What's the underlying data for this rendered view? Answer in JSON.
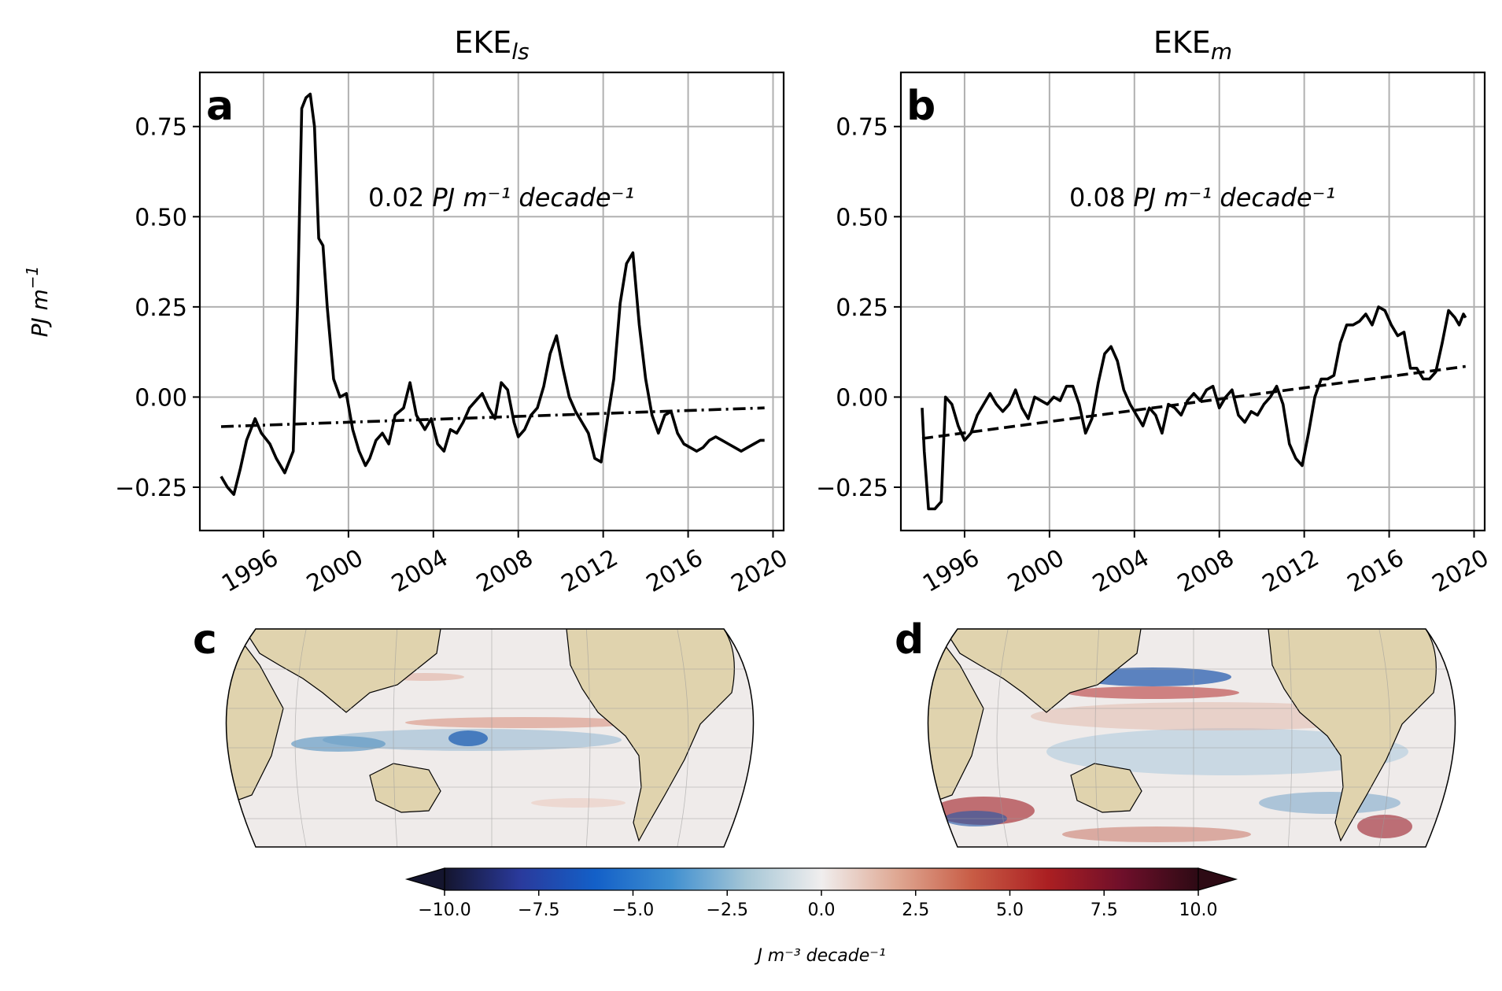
{
  "chart_data": [
    {
      "type": "line",
      "panel": "a",
      "title": "EKE",
      "title_sub": "ls",
      "ylabel": "PJ m",
      "ylabel_sup": "−1",
      "xlim": [
        1993.0,
        2020.5
      ],
      "ylim": [
        -0.37,
        0.9
      ],
      "xticks": [
        1996,
        2000,
        2004,
        2008,
        2012,
        2016,
        2020
      ],
      "xtick_labels": [
        "1996",
        "2000",
        "2004",
        "2008",
        "2012",
        "2016",
        "2020"
      ],
      "yticks": [
        -0.25,
        0.0,
        0.25,
        0.5,
        0.75
      ],
      "ytick_labels": [
        "−0.25",
        "0.00",
        "0.25",
        "0.50",
        "0.75"
      ],
      "grid": true,
      "trend_label": "0.02",
      "trend_units": "PJ m⁻¹ decade⁻¹",
      "series": [
        {
          "style": "solid",
          "color": "#000000",
          "x": [
            1994.0,
            1994.3,
            1994.6,
            1994.9,
            1995.2,
            1995.6,
            1995.9,
            1996.3,
            1996.6,
            1997.0,
            1997.4,
            1997.6,
            1997.8,
            1998.0,
            1998.2,
            1998.4,
            1998.6,
            1998.8,
            1999.0,
            1999.3,
            1999.6,
            1999.9,
            2000.2,
            2000.5,
            2000.8,
            2001.0,
            2001.3,
            2001.6,
            2001.9,
            2002.2,
            2002.6,
            2002.9,
            2003.2,
            2003.6,
            2003.9,
            2004.2,
            2004.5,
            2004.8,
            2005.1,
            2005.4,
            2005.7,
            2006.0,
            2006.3,
            2006.6,
            2006.9,
            2007.2,
            2007.5,
            2007.8,
            2008.0,
            2008.3,
            2008.6,
            2008.9,
            2009.2,
            2009.5,
            2009.8,
            2010.1,
            2010.4,
            2010.7,
            2011.0,
            2011.3,
            2011.6,
            2011.9,
            2012.2,
            2012.5,
            2012.8,
            2013.1,
            2013.4,
            2013.7,
            2014.0,
            2014.3,
            2014.6,
            2014.9,
            2015.2,
            2015.5,
            2015.8,
            2016.1,
            2016.4,
            2016.7,
            2017.0,
            2017.3,
            2017.6,
            2017.9,
            2018.2,
            2018.5,
            2018.8,
            2019.1,
            2019.4,
            2019.6
          ],
          "y": [
            -0.22,
            -0.25,
            -0.27,
            -0.2,
            -0.12,
            -0.06,
            -0.1,
            -0.13,
            -0.17,
            -0.21,
            -0.15,
            0.25,
            0.8,
            0.83,
            0.84,
            0.75,
            0.44,
            0.42,
            0.25,
            0.05,
            0.0,
            0.01,
            -0.09,
            -0.15,
            -0.19,
            -0.17,
            -0.12,
            -0.1,
            -0.13,
            -0.05,
            -0.03,
            0.04,
            -0.05,
            -0.09,
            -0.06,
            -0.13,
            -0.15,
            -0.09,
            -0.1,
            -0.07,
            -0.03,
            -0.01,
            0.01,
            -0.03,
            -0.06,
            0.04,
            0.02,
            -0.07,
            -0.11,
            -0.09,
            -0.05,
            -0.03,
            0.03,
            0.12,
            0.17,
            0.08,
            0.0,
            -0.04,
            -0.07,
            -0.1,
            -0.17,
            -0.18,
            -0.06,
            0.05,
            0.26,
            0.37,
            0.4,
            0.2,
            0.05,
            -0.05,
            -0.1,
            -0.05,
            -0.04,
            -0.1,
            -0.13,
            -0.14,
            -0.15,
            -0.14,
            -0.12,
            -0.11,
            -0.12,
            -0.13,
            -0.14,
            -0.15,
            -0.14,
            -0.13,
            -0.12,
            -0.12
          ]
        },
        {
          "style": "dashdot",
          "color": "#000000",
          "x": [
            1994.0,
            2019.6
          ],
          "y": [
            -0.082,
            -0.03
          ]
        }
      ]
    },
    {
      "type": "line",
      "panel": "b",
      "title": "EKE",
      "title_sub": "m",
      "xlim": [
        1993.0,
        2020.5
      ],
      "ylim": [
        -0.37,
        0.9
      ],
      "xticks": [
        1996,
        2000,
        2004,
        2008,
        2012,
        2016,
        2020
      ],
      "xtick_labels": [
        "1996",
        "2000",
        "2004",
        "2008",
        "2012",
        "2016",
        "2020"
      ],
      "yticks": [
        -0.25,
        0.0,
        0.25,
        0.5,
        0.75
      ],
      "ytick_labels": [
        "−0.25",
        "0.00",
        "0.25",
        "0.50",
        "0.75"
      ],
      "grid": true,
      "trend_label": "0.08",
      "trend_units": "PJ m⁻¹ decade⁻¹",
      "series": [
        {
          "style": "solid",
          "color": "#000000",
          "x": [
            1994.0,
            1994.1,
            1994.3,
            1994.6,
            1994.9,
            1995.1,
            1995.4,
            1995.7,
            1996.0,
            1996.3,
            1996.6,
            1996.9,
            1997.2,
            1997.5,
            1997.8,
            1998.1,
            1998.4,
            1998.7,
            1999.0,
            1999.3,
            1999.6,
            1999.9,
            2000.2,
            2000.5,
            2000.8,
            2001.1,
            2001.4,
            2001.7,
            2002.0,
            2002.3,
            2002.6,
            2002.9,
            2003.2,
            2003.5,
            2003.8,
            2004.1,
            2004.4,
            2004.7,
            2005.0,
            2005.3,
            2005.6,
            2005.9,
            2006.2,
            2006.5,
            2006.8,
            2007.1,
            2007.4,
            2007.7,
            2008.0,
            2008.3,
            2008.6,
            2008.9,
            2009.2,
            2009.5,
            2009.8,
            2010.1,
            2010.4,
            2010.7,
            2011.0,
            2011.3,
            2011.6,
            2011.9,
            2012.2,
            2012.5,
            2012.8,
            2013.1,
            2013.4,
            2013.7,
            2014.0,
            2014.3,
            2014.6,
            2014.9,
            2015.2,
            2015.5,
            2015.8,
            2016.1,
            2016.4,
            2016.7,
            2017.0,
            2017.3,
            2017.6,
            2017.9,
            2018.2,
            2018.5,
            2018.8,
            2019.1,
            2019.3,
            2019.5,
            2019.6
          ],
          "y": [
            -0.03,
            -0.15,
            -0.31,
            -0.31,
            -0.29,
            0.0,
            -0.02,
            -0.08,
            -0.12,
            -0.1,
            -0.05,
            -0.02,
            0.01,
            -0.02,
            -0.04,
            -0.02,
            0.02,
            -0.03,
            -0.06,
            0.0,
            -0.01,
            -0.02,
            0.0,
            -0.01,
            0.03,
            0.03,
            -0.02,
            -0.1,
            -0.06,
            0.04,
            0.12,
            0.14,
            0.1,
            0.02,
            -0.02,
            -0.05,
            -0.08,
            -0.03,
            -0.05,
            -0.1,
            -0.02,
            -0.03,
            -0.05,
            -0.01,
            0.01,
            -0.01,
            0.02,
            0.03,
            -0.03,
            0.0,
            0.02,
            -0.05,
            -0.07,
            -0.04,
            -0.05,
            -0.02,
            0.0,
            0.03,
            -0.02,
            -0.13,
            -0.17,
            -0.19,
            -0.1,
            0.0,
            0.05,
            0.05,
            0.06,
            0.15,
            0.2,
            0.2,
            0.21,
            0.23,
            0.2,
            0.25,
            0.24,
            0.2,
            0.17,
            0.18,
            0.08,
            0.08,
            0.05,
            0.05,
            0.07,
            0.15,
            0.24,
            0.22,
            0.2,
            0.23,
            0.22
          ]
        },
        {
          "style": "dashed",
          "color": "#000000",
          "x": [
            1994.0,
            2019.6
          ],
          "y": [
            -0.115,
            0.085
          ]
        }
      ]
    }
  ],
  "maps": [
    {
      "panel": "c",
      "letter": "c"
    },
    {
      "panel": "d",
      "letter": "d"
    }
  ],
  "colorbar": {
    "vmin": -10.0,
    "vmax": 10.0,
    "ticks": [
      -10,
      -7.5,
      -5,
      -2.5,
      0,
      2.5,
      5,
      7.5,
      10
    ],
    "tick_labels": [
      "−10.0",
      "−7.5",
      "−5.0",
      "−2.5",
      "0.0",
      "2.5",
      "5.0",
      "7.5",
      "10.0"
    ],
    "label": "J m⁻³ decade⁻¹",
    "colors": [
      "#14152e",
      "#2a3a9c",
      "#1360c8",
      "#3f8fd0",
      "#a5c6d6",
      "#f0eeee",
      "#dfa893",
      "#c85c45",
      "#ab1f22",
      "#6e0f2a",
      "#2d0a14"
    ]
  },
  "colors": {
    "land": "#e0d3ae",
    "ocean": "#efebea",
    "grid": "#b0b0b0"
  }
}
